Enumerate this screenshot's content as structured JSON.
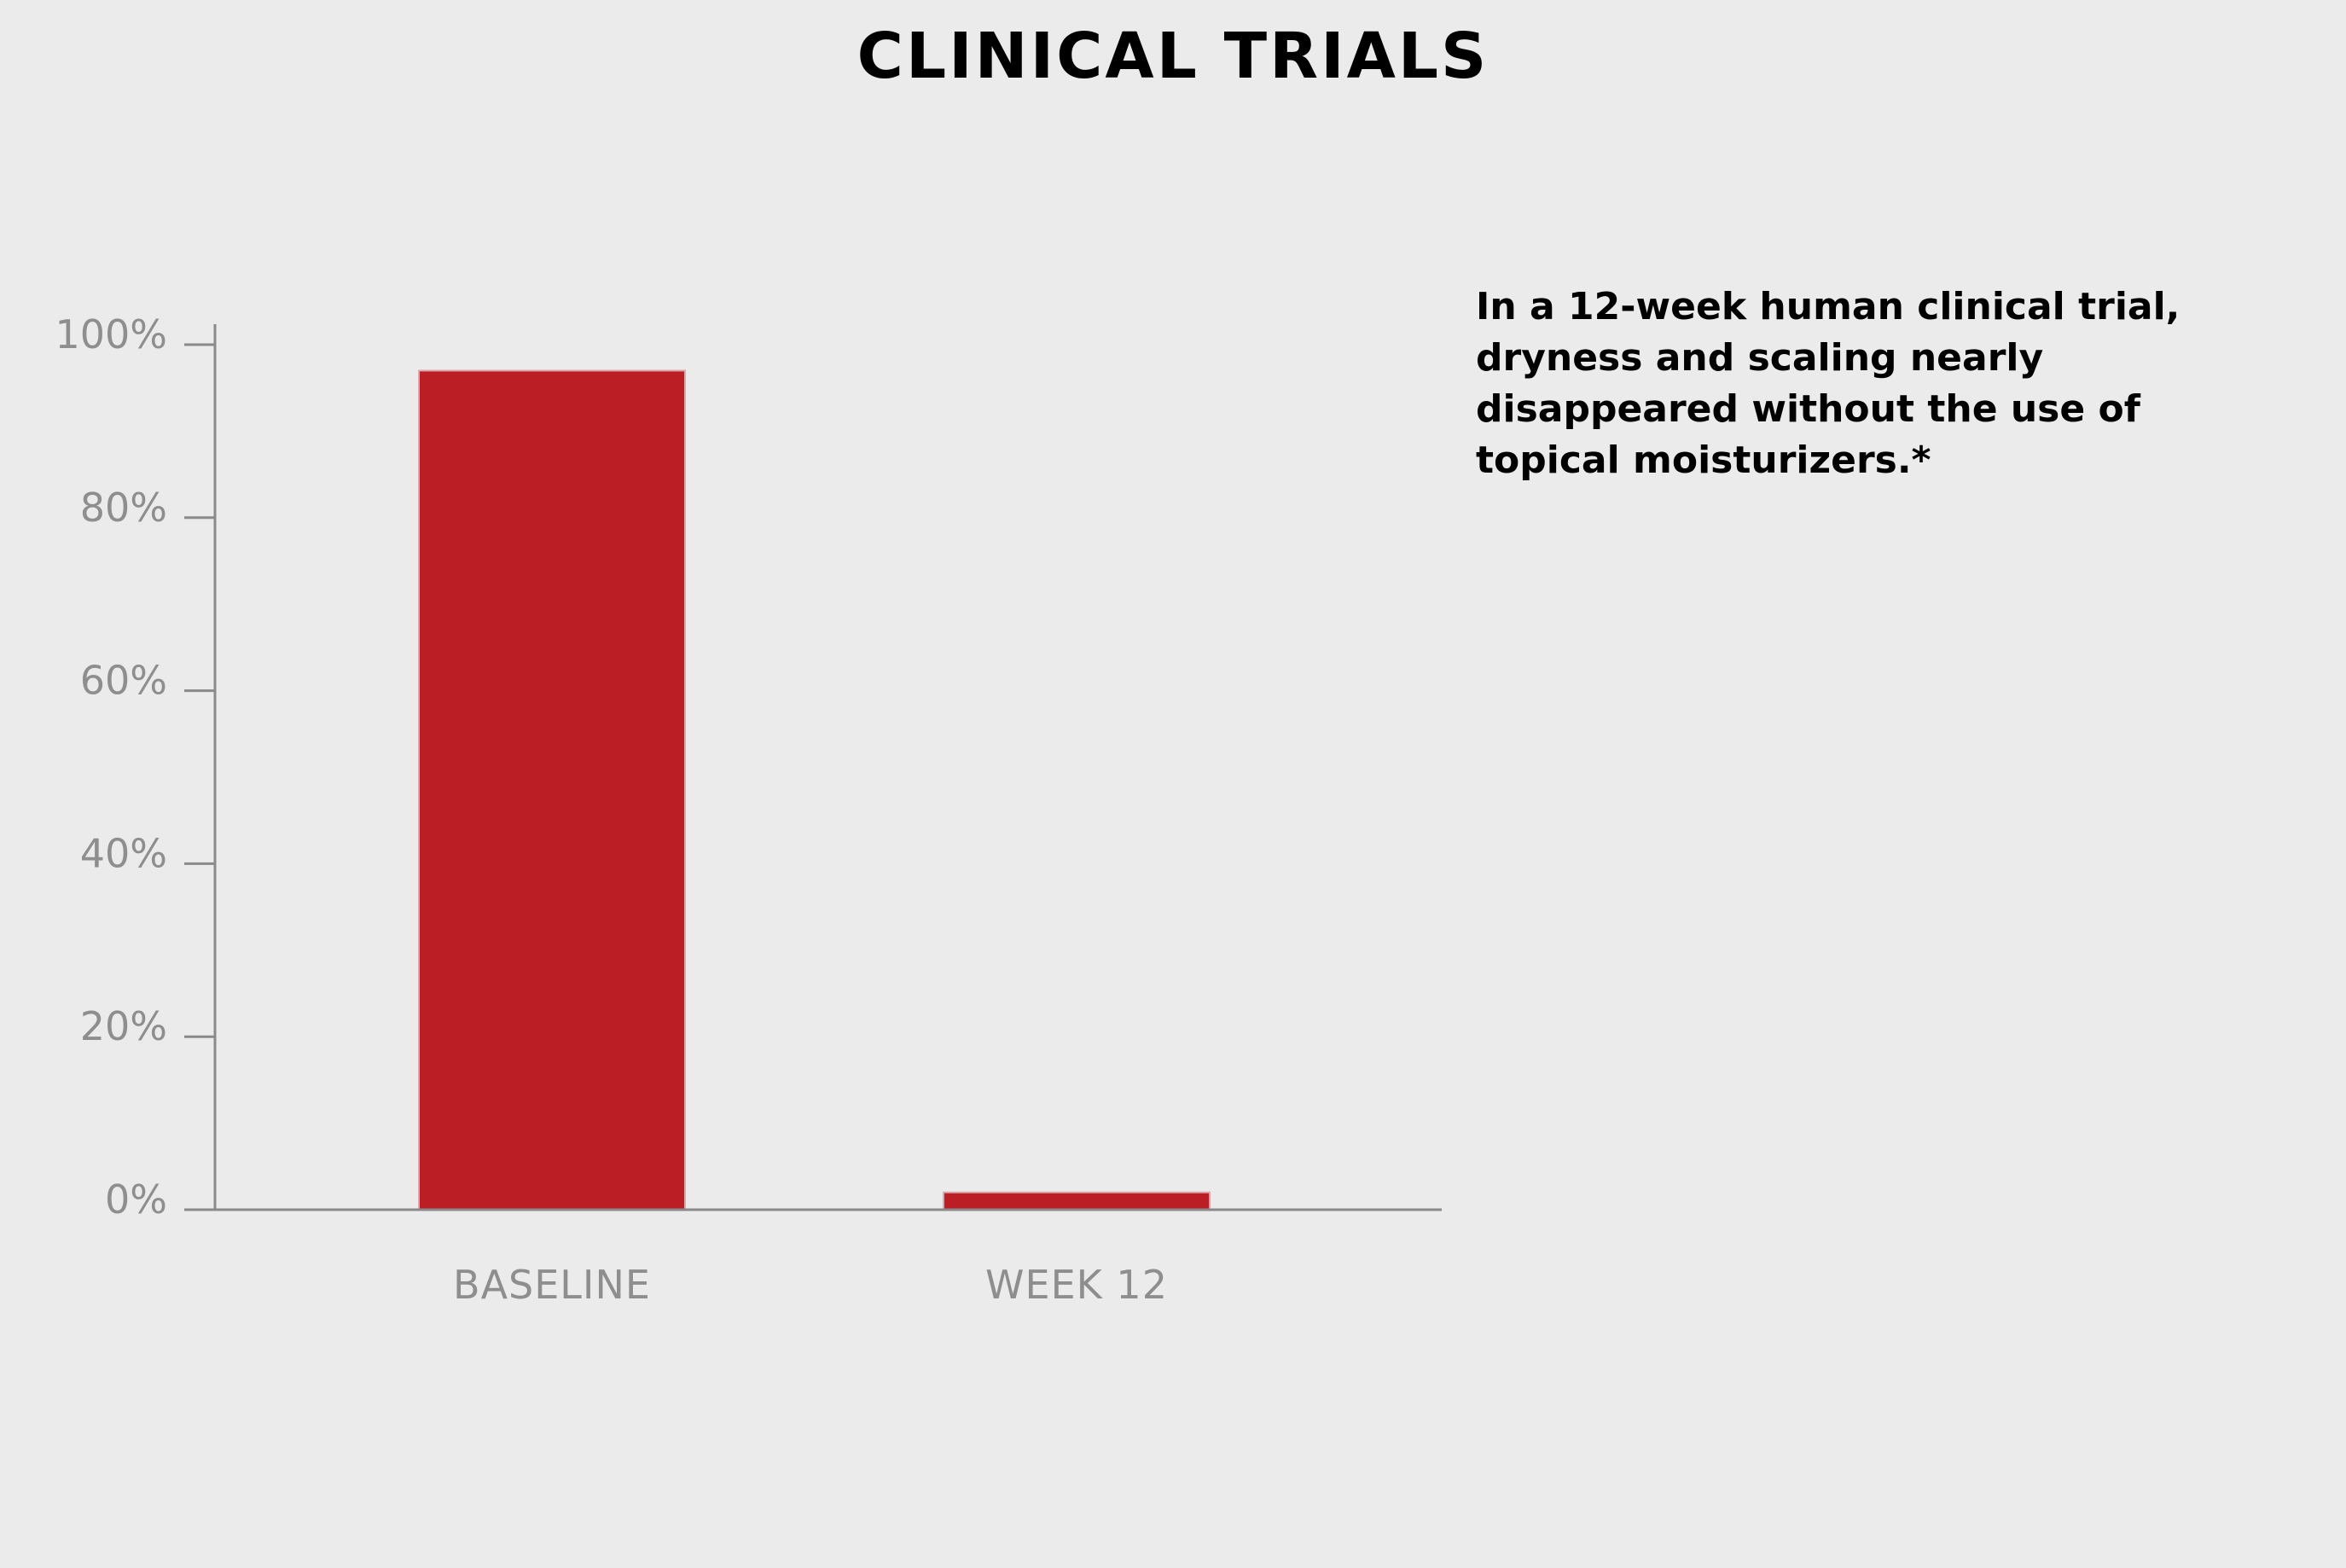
{
  "title": "CLINICAL TRIALS",
  "caption": [
    "In a 12-week human clinical trial,",
    "dryness and scaling nearly",
    "disappeared without the use of",
    "topical moisturizers.*"
  ],
  "colors": {
    "background": "#ebebeb",
    "bar": "#bb1f25",
    "axis": "#8a8a8a",
    "tick_text": "#8e8e8e"
  },
  "chart_data": {
    "type": "bar",
    "title": "",
    "xlabel": "",
    "ylabel": "",
    "categories": [
      "BASELINE",
      "WEEK 12"
    ],
    "values": [
      97,
      2
    ],
    "ylim": [
      0,
      100
    ],
    "yticks": [
      0,
      20,
      40,
      60,
      80,
      100
    ],
    "ytick_labels": [
      "0%",
      "20%",
      "40%",
      "60%",
      "80%",
      "100%"
    ],
    "grid": false,
    "legend": "none"
  }
}
